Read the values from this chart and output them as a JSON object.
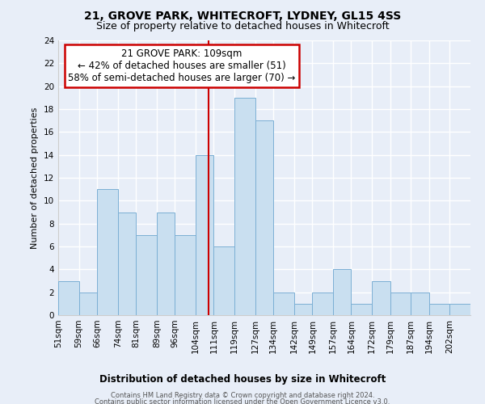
{
  "title_line1": "21, GROVE PARK, WHITECROFT, LYDNEY, GL15 4SS",
  "title_line2": "Size of property relative to detached houses in Whitecroft",
  "xlabel": "Distribution of detached houses by size in Whitecroft",
  "ylabel": "Number of detached properties",
  "bin_labels": [
    "51sqm",
    "59sqm",
    "66sqm",
    "74sqm",
    "81sqm",
    "89sqm",
    "96sqm",
    "104sqm",
    "111sqm",
    "119sqm",
    "127sqm",
    "134sqm",
    "142sqm",
    "149sqm",
    "157sqm",
    "164sqm",
    "172sqm",
    "179sqm",
    "187sqm",
    "194sqm",
    "202sqm"
  ],
  "bin_edges": [
    51,
    59,
    66,
    74,
    81,
    89,
    96,
    104,
    111,
    119,
    127,
    134,
    142,
    149,
    157,
    164,
    172,
    179,
    187,
    194,
    202,
    210
  ],
  "counts": [
    3,
    2,
    11,
    9,
    7,
    9,
    7,
    14,
    6,
    19,
    17,
    2,
    1,
    2,
    4,
    1,
    3,
    2,
    2,
    1,
    1
  ],
  "bar_color": "#c9dff0",
  "bar_edge_color": "#7bafd4",
  "vline_color": "#cc0000",
  "vline_x": 109,
  "annotation_title": "21 GROVE PARK: 109sqm",
  "annotation_line1": "← 42% of detached houses are smaller (51)",
  "annotation_line2": "58% of semi-detached houses are larger (70) →",
  "annotation_box_color": "#ffffff",
  "annotation_border_color": "#cc0000",
  "ylim": [
    0,
    24
  ],
  "yticks": [
    0,
    2,
    4,
    6,
    8,
    10,
    12,
    14,
    16,
    18,
    20,
    22,
    24
  ],
  "footer_line1": "Contains HM Land Registry data © Crown copyright and database right 2024.",
  "footer_line2": "Contains public sector information licensed under the Open Government Licence v3.0.",
  "background_color": "#e8eef8",
  "plot_bg_color": "#e8eef8",
  "grid_color": "#ffffff",
  "title_fontsize": 10,
  "subtitle_fontsize": 9,
  "ylabel_fontsize": 8,
  "tick_fontsize": 7.5,
  "annotation_fontsize": 8.5,
  "xlabel_fontsize": 8.5
}
